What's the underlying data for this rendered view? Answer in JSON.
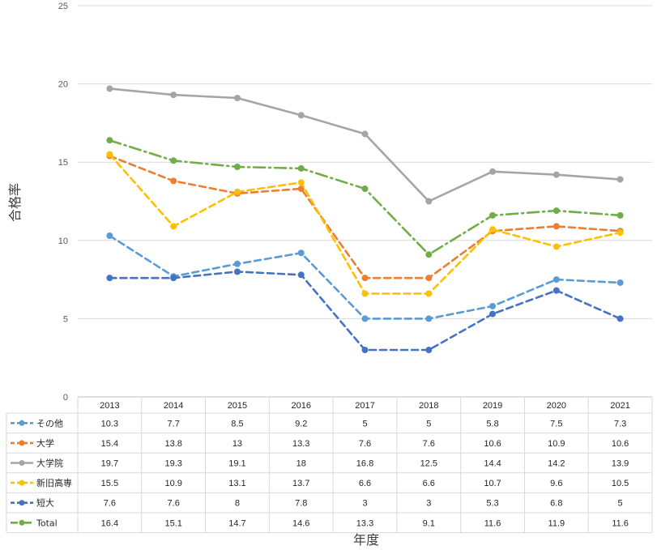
{
  "chart_data": {
    "type": "line",
    "title": "",
    "xlabel": "年度",
    "ylabel": "合格率",
    "ylim": [
      0,
      25
    ],
    "yticks": [
      0,
      5,
      10,
      15,
      20,
      25
    ],
    "grid": "horizontal",
    "legend": "data-table-below",
    "categories": [
      "2013",
      "2014",
      "2015",
      "2016",
      "2017",
      "2018",
      "2019",
      "2020",
      "2021"
    ],
    "series": [
      {
        "name": "その他",
        "color": "#5b9bd5",
        "dash": "dashed",
        "values": [
          10.3,
          7.7,
          8.5,
          9.2,
          5,
          5,
          5.8,
          7.5,
          7.3
        ]
      },
      {
        "name": "大学",
        "color": "#ed7d31",
        "dash": "dashed",
        "values": [
          15.4,
          13.8,
          13,
          13.3,
          7.6,
          7.6,
          10.6,
          10.9,
          10.6
        ]
      },
      {
        "name": "大学院",
        "color": "#a5a5a5",
        "dash": "solid",
        "values": [
          19.7,
          19.3,
          19.1,
          18,
          16.8,
          12.5,
          14.4,
          14.2,
          13.9
        ]
      },
      {
        "name": "新旧高専",
        "color": "#ffc000",
        "dash": "dashed",
        "values": [
          15.5,
          10.9,
          13.1,
          13.7,
          6.6,
          6.6,
          10.7,
          9.6,
          10.5
        ]
      },
      {
        "name": "短大",
        "color": "#4472c4",
        "dash": "dashed",
        "values": [
          7.6,
          7.6,
          8,
          7.8,
          3,
          3,
          5.3,
          6.8,
          5
        ]
      },
      {
        "name": "Total",
        "color": "#70ad47",
        "dash": "dashdot",
        "values": [
          16.4,
          15.1,
          14.7,
          14.6,
          13.3,
          9.1,
          11.6,
          11.9,
          11.6
        ]
      }
    ]
  }
}
